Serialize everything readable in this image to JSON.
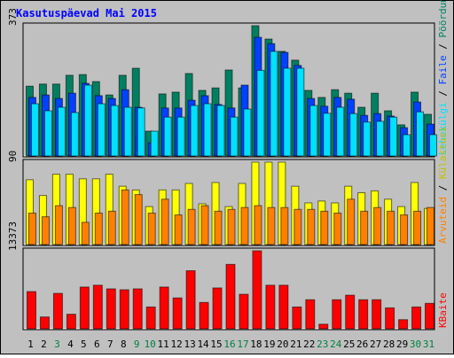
{
  "title": "Kasutuspäevad Mai 2015",
  "legend_separator": " / ",
  "chart_data": [
    {
      "type": "bar",
      "ylim": [
        0,
        373
      ],
      "yticks": [
        373
      ],
      "series": [
        {
          "name": "Pöördumisi",
          "color": "#008060",
          "values": [
            201,
            207,
            207,
            232,
            234,
            214,
            176,
            232,
            252,
            73,
            179,
            184,
            237,
            189,
            196,
            247,
            196,
            373,
            335,
            300,
            275,
            189,
            169,
            191,
            181,
            141,
            181,
            131,
            91,
            184,
            121
          ]
        },
        {
          "name": "Faile",
          "color": "#0040ff",
          "values": [
            169,
            176,
            166,
            181,
            209,
            174,
            166,
            191,
            141,
            40,
            139,
            139,
            161,
            174,
            149,
            139,
            204,
            340,
            322,
            297,
            260,
            166,
            144,
            169,
            164,
            118,
            123,
            116,
            83,
            156,
            93
          ]
        },
        {
          "name": "Lehekülgi",
          "color": "#00e0ff",
          "values": [
            151,
            131,
            141,
            126,
            204,
            151,
            146,
            141,
            139,
            73,
            113,
            113,
            146,
            151,
            146,
            113,
            136,
            246,
            300,
            252,
            252,
            146,
            124,
            141,
            123,
            99,
            101,
            113,
            63,
            128,
            63
          ]
        }
      ]
    },
    {
      "type": "bar",
      "ylim": [
        0,
        90
      ],
      "yticks": [
        90
      ],
      "series": [
        {
          "name": "Külastusi",
          "color": "#ffff00",
          "values": [
            71,
            54,
            77,
            77,
            72,
            72,
            77,
            64,
            60,
            42,
            60,
            60,
            67,
            45,
            68,
            42,
            67,
            90,
            90,
            90,
            64,
            46,
            48,
            46,
            64,
            57,
            59,
            50,
            42,
            68,
            40
          ]
        },
        {
          "name": "Arvuteid",
          "color": "#ff8000",
          "values": [
            35,
            31,
            43,
            41,
            25,
            35,
            37,
            60,
            55,
            35,
            50,
            33,
            39,
            43,
            37,
            39,
            41,
            43,
            41,
            41,
            39,
            39,
            37,
            35,
            50,
            37,
            41,
            37,
            33,
            37,
            41
          ]
        }
      ]
    },
    {
      "type": "bar",
      "ylim": [
        0,
        13373
      ],
      "yticks": [
        13373
      ],
      "categories": [
        "1",
        "2",
        "3",
        "4",
        "5",
        "6",
        "7",
        "8",
        "9",
        "10",
        "11",
        "12",
        "13",
        "14",
        "15",
        "16",
        "17",
        "18",
        "19",
        "20",
        "21",
        "22",
        "23",
        "24",
        "25",
        "26",
        "27",
        "28",
        "29",
        "30",
        "31"
      ],
      "x_label_colors": [
        "#000000",
        "#000000",
        "#008040",
        "#000000",
        "#000000",
        "#000000",
        "#000000",
        "#000000",
        "#008040",
        "#008040",
        "#000000",
        "#000000",
        "#000000",
        "#000000",
        "#000000",
        "#008040",
        "#008040",
        "#000000",
        "#000000",
        "#000000",
        "#000000",
        "#000000",
        "#008040",
        "#008040",
        "#000000",
        "#000000",
        "#000000",
        "#000000",
        "#000000",
        "#008040",
        "#008040"
      ],
      "series": [
        {
          "name": "KBaite",
          "color": "#ff0000",
          "values": [
            6456,
            2152,
            6149,
            2613,
            7225,
            7532,
            6917,
            6764,
            6917,
            3843,
            7225,
            5380,
            9991,
            4612,
            7071,
            11067,
            5995,
            13373,
            7532,
            7532,
            3843,
            5073,
            922,
            5073,
            5841,
            5073,
            5073,
            3690,
            1691,
            3843,
            4458
          ]
        }
      ]
    }
  ]
}
